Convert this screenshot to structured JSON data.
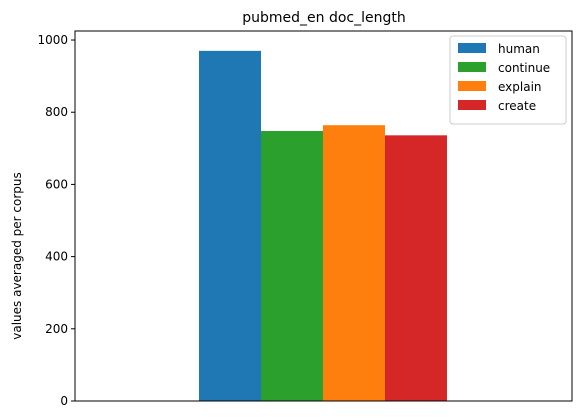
{
  "chart_data": {
    "type": "bar",
    "title": "pubmed_en doc_length",
    "xlabel": "",
    "ylabel": "values averaged per corpus",
    "ylim": [
      0,
      1025
    ],
    "yticks": [
      "0",
      "200",
      "400",
      "600",
      "800",
      "1000"
    ],
    "grid": false,
    "legend_position": "top-right",
    "categories": [
      ""
    ],
    "series": [
      {
        "name": "human",
        "values": [
          970
        ],
        "color": "#1f77b4"
      },
      {
        "name": "continue",
        "values": [
          748
        ],
        "color": "#2ca02c"
      },
      {
        "name": "explain",
        "values": [
          764
        ],
        "color": "#ff7f0e"
      },
      {
        "name": "create",
        "values": [
          736
        ],
        "color": "#d62728"
      }
    ]
  }
}
